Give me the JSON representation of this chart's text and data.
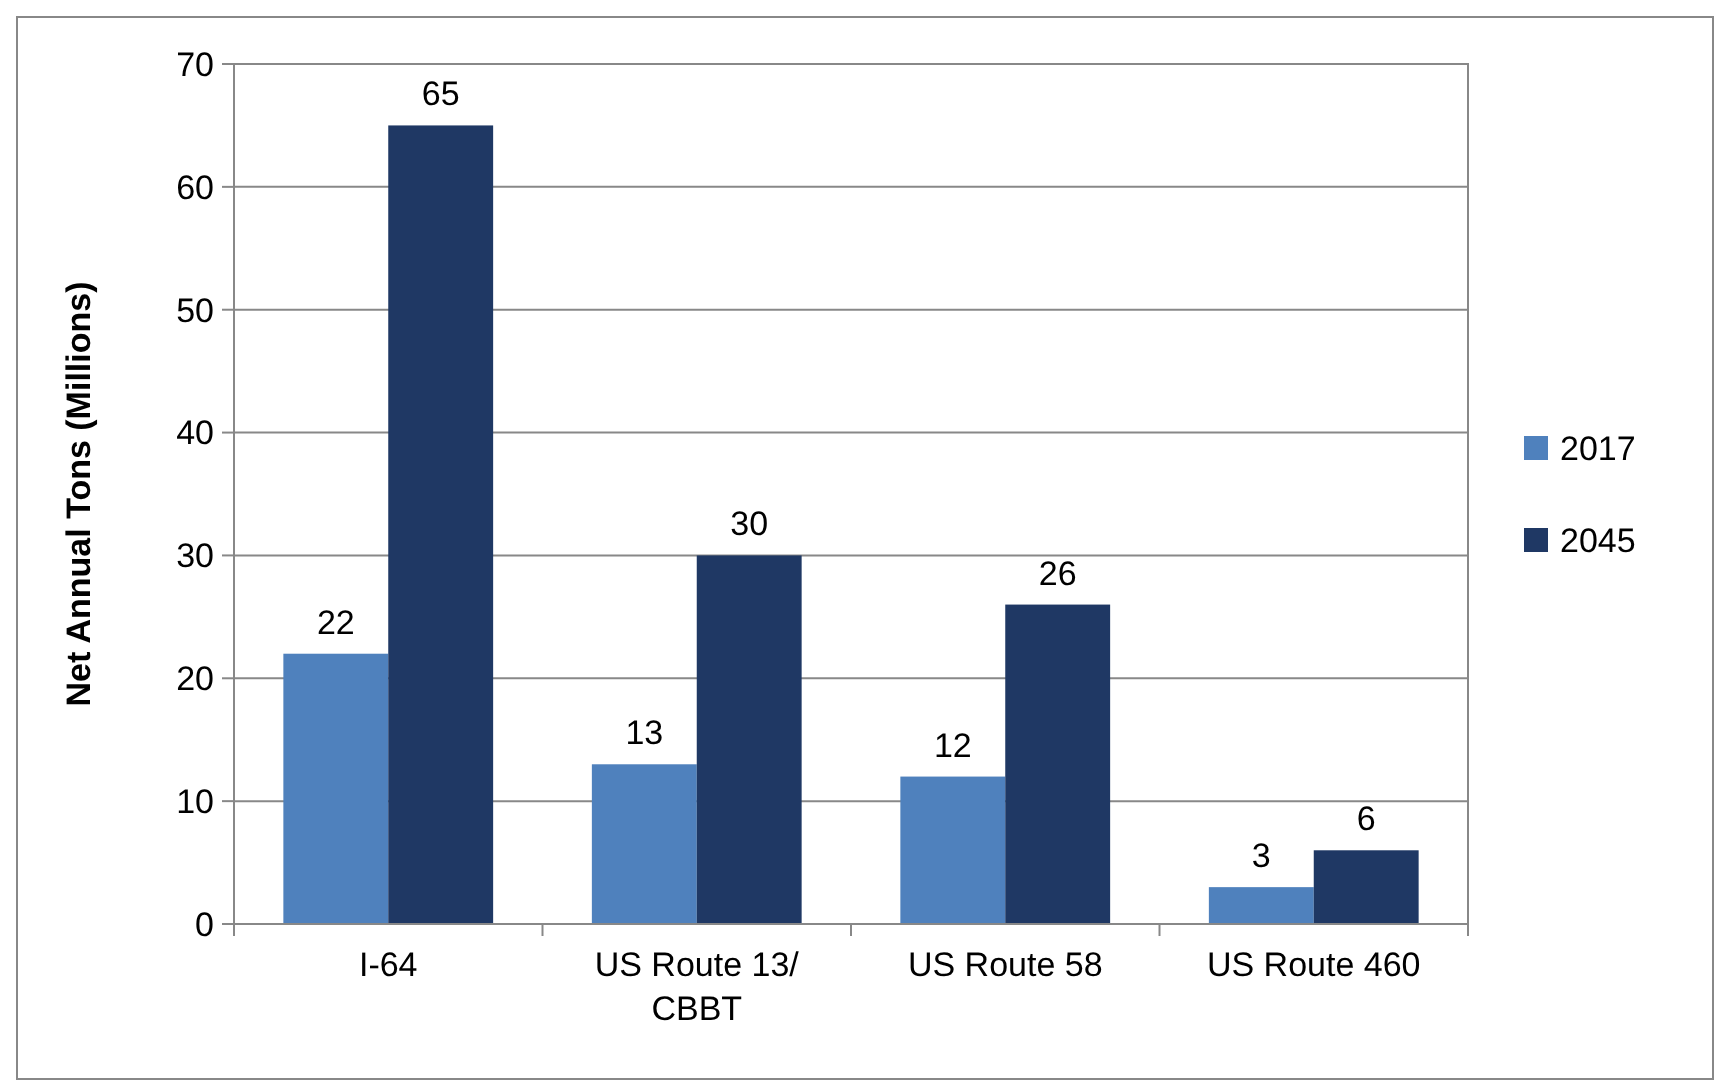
{
  "chart_data": {
    "type": "bar",
    "ylabel": "Net Annual Tons (Millions)",
    "categories": [
      "I-64",
      "US Route 13/ CBBT",
      "US Route 58",
      "US Route 460"
    ],
    "series": [
      {
        "name": "2017",
        "color": "#4f81bd",
        "values": [
          22,
          13,
          12,
          3
        ]
      },
      {
        "name": "2045",
        "color": "#1f3864",
        "values": [
          65,
          30,
          26,
          6
        ]
      }
    ],
    "ylim": [
      0,
      70
    ],
    "yticks": [
      0,
      10,
      20,
      30,
      40,
      50,
      60,
      70
    ],
    "grid": "y",
    "legend": "right",
    "data_labels": true
  }
}
